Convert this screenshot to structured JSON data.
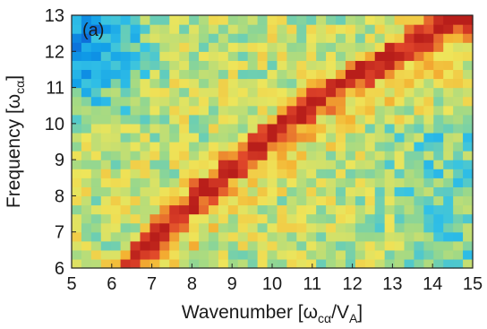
{
  "chart_data": {
    "type": "heatmap",
    "panel_label": "(a)",
    "xlabel": {
      "main": "Wavenumber [ω",
      "sub1": "cα",
      "mid": "/V",
      "sub2": "A",
      "end": "]"
    },
    "ylabel": {
      "main": "Frequency [ω",
      "sub": "cα",
      "end": "]"
    },
    "xlim": [
      5,
      15
    ],
    "ylim": [
      6,
      13
    ],
    "x_ticks": [
      5,
      6,
      7,
      8,
      9,
      10,
      11,
      12,
      13,
      14,
      15
    ],
    "y_ticks": [
      6,
      7,
      8,
      9,
      10,
      11,
      12,
      13
    ],
    "grid": false,
    "colormap": [
      "#0a34c8",
      "#0f9ce8",
      "#33c2e6",
      "#9ad88a",
      "#eee55a",
      "#f4b232",
      "#e0452a",
      "#b81e1a"
    ],
    "ridge": {
      "description_values": "power concentrated along a diagonal band",
      "points": [
        [
          6.4,
          6.05
        ],
        [
          7.0,
          6.8
        ],
        [
          8.0,
          7.85
        ],
        [
          9.0,
          8.8
        ],
        [
          10.0,
          9.7
        ],
        [
          11.0,
          10.55
        ],
        [
          12.0,
          11.3
        ],
        [
          13.0,
          11.9
        ],
        [
          13.5,
          12.2
        ]
      ],
      "peak_level": 1.0
    },
    "grid_cells": {
      "nx": 41,
      "ny": 28
    }
  }
}
